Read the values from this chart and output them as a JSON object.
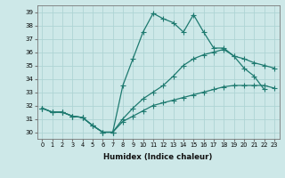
{
  "xlabel": "Humidex (Indice chaleur)",
  "xlim": [
    -0.5,
    23.5
  ],
  "ylim": [
    29.5,
    39.5
  ],
  "xticks": [
    0,
    1,
    2,
    3,
    4,
    5,
    6,
    7,
    8,
    9,
    10,
    11,
    12,
    13,
    14,
    15,
    16,
    17,
    18,
    19,
    20,
    21,
    22,
    23
  ],
  "yticks": [
    30,
    31,
    32,
    33,
    34,
    35,
    36,
    37,
    38,
    39
  ],
  "background_color": "#cde8e8",
  "grid_color": "#aed4d4",
  "line_color": "#1e7a70",
  "line1_x": [
    0,
    1,
    2,
    3,
    4,
    5,
    6,
    7,
    8,
    9,
    10,
    11,
    12,
    13,
    14,
    15,
    16,
    17,
    18,
    19,
    20,
    21,
    22
  ],
  "line1_y": [
    31.8,
    31.5,
    31.5,
    31.2,
    31.1,
    30.5,
    30.0,
    30.0,
    33.5,
    35.5,
    37.5,
    38.9,
    38.5,
    38.2,
    37.5,
    38.8,
    37.5,
    36.3,
    36.3,
    35.7,
    34.8,
    34.2,
    33.2
  ],
  "line2_x": [
    0,
    1,
    2,
    3,
    4,
    5,
    6,
    7,
    8,
    9,
    10,
    11,
    12,
    13,
    14,
    15,
    16,
    17,
    18,
    19,
    20,
    21,
    22,
    23
  ],
  "line2_y": [
    31.8,
    31.5,
    31.5,
    31.2,
    31.1,
    30.5,
    30.0,
    30.0,
    31.0,
    31.8,
    32.5,
    33.0,
    33.5,
    34.2,
    35.0,
    35.5,
    35.8,
    36.0,
    36.2,
    35.7,
    35.5,
    35.2,
    35.0,
    34.8
  ],
  "line3_x": [
    0,
    1,
    2,
    3,
    4,
    5,
    6,
    7,
    8,
    9,
    10,
    11,
    12,
    13,
    14,
    15,
    16,
    17,
    18,
    19,
    20,
    21,
    22,
    23
  ],
  "line3_y": [
    31.8,
    31.5,
    31.5,
    31.2,
    31.1,
    30.5,
    30.0,
    30.0,
    30.8,
    31.2,
    31.6,
    32.0,
    32.2,
    32.4,
    32.6,
    32.8,
    33.0,
    33.2,
    33.4,
    33.5,
    33.5,
    33.5,
    33.5,
    33.3
  ]
}
